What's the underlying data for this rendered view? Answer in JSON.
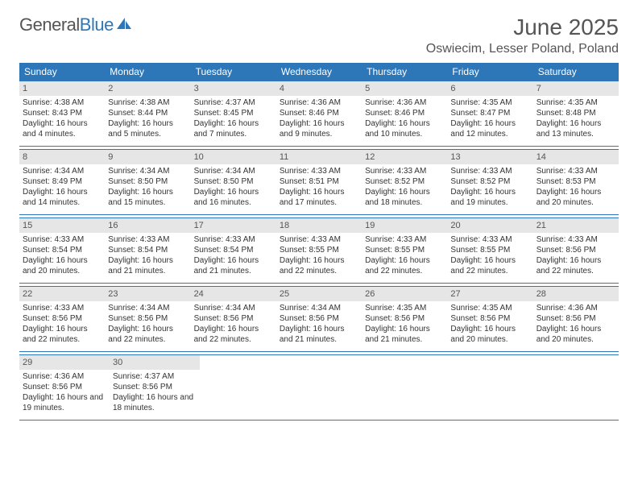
{
  "logo": {
    "text_gray": "General",
    "text_blue": "Blue"
  },
  "header": {
    "month_title": "June 2025",
    "location": "Oswiecim, Lesser Poland, Poland"
  },
  "colors": {
    "brand_blue": "#2d76b8",
    "gray_text": "#555555",
    "daynum_bg": "#e6e6e6"
  },
  "day_names": [
    "Sunday",
    "Monday",
    "Tuesday",
    "Wednesday",
    "Thursday",
    "Friday",
    "Saturday"
  ],
  "layout": {
    "first_day_offset": 0,
    "days_in_month": 30
  },
  "days": [
    {
      "n": 1,
      "sunrise": "4:38 AM",
      "sunset": "8:43 PM",
      "daylight": "16 hours and 4 minutes."
    },
    {
      "n": 2,
      "sunrise": "4:38 AM",
      "sunset": "8:44 PM",
      "daylight": "16 hours and 5 minutes."
    },
    {
      "n": 3,
      "sunrise": "4:37 AM",
      "sunset": "8:45 PM",
      "daylight": "16 hours and 7 minutes."
    },
    {
      "n": 4,
      "sunrise": "4:36 AM",
      "sunset": "8:46 PM",
      "daylight": "16 hours and 9 minutes."
    },
    {
      "n": 5,
      "sunrise": "4:36 AM",
      "sunset": "8:46 PM",
      "daylight": "16 hours and 10 minutes."
    },
    {
      "n": 6,
      "sunrise": "4:35 AM",
      "sunset": "8:47 PM",
      "daylight": "16 hours and 12 minutes."
    },
    {
      "n": 7,
      "sunrise": "4:35 AM",
      "sunset": "8:48 PM",
      "daylight": "16 hours and 13 minutes."
    },
    {
      "n": 8,
      "sunrise": "4:34 AM",
      "sunset": "8:49 PM",
      "daylight": "16 hours and 14 minutes."
    },
    {
      "n": 9,
      "sunrise": "4:34 AM",
      "sunset": "8:50 PM",
      "daylight": "16 hours and 15 minutes."
    },
    {
      "n": 10,
      "sunrise": "4:34 AM",
      "sunset": "8:50 PM",
      "daylight": "16 hours and 16 minutes."
    },
    {
      "n": 11,
      "sunrise": "4:33 AM",
      "sunset": "8:51 PM",
      "daylight": "16 hours and 17 minutes."
    },
    {
      "n": 12,
      "sunrise": "4:33 AM",
      "sunset": "8:52 PM",
      "daylight": "16 hours and 18 minutes."
    },
    {
      "n": 13,
      "sunrise": "4:33 AM",
      "sunset": "8:52 PM",
      "daylight": "16 hours and 19 minutes."
    },
    {
      "n": 14,
      "sunrise": "4:33 AM",
      "sunset": "8:53 PM",
      "daylight": "16 hours and 20 minutes."
    },
    {
      "n": 15,
      "sunrise": "4:33 AM",
      "sunset": "8:54 PM",
      "daylight": "16 hours and 20 minutes."
    },
    {
      "n": 16,
      "sunrise": "4:33 AM",
      "sunset": "8:54 PM",
      "daylight": "16 hours and 21 minutes."
    },
    {
      "n": 17,
      "sunrise": "4:33 AM",
      "sunset": "8:54 PM",
      "daylight": "16 hours and 21 minutes."
    },
    {
      "n": 18,
      "sunrise": "4:33 AM",
      "sunset": "8:55 PM",
      "daylight": "16 hours and 22 minutes."
    },
    {
      "n": 19,
      "sunrise": "4:33 AM",
      "sunset": "8:55 PM",
      "daylight": "16 hours and 22 minutes."
    },
    {
      "n": 20,
      "sunrise": "4:33 AM",
      "sunset": "8:55 PM",
      "daylight": "16 hours and 22 minutes."
    },
    {
      "n": 21,
      "sunrise": "4:33 AM",
      "sunset": "8:56 PM",
      "daylight": "16 hours and 22 minutes."
    },
    {
      "n": 22,
      "sunrise": "4:33 AM",
      "sunset": "8:56 PM",
      "daylight": "16 hours and 22 minutes."
    },
    {
      "n": 23,
      "sunrise": "4:34 AM",
      "sunset": "8:56 PM",
      "daylight": "16 hours and 22 minutes."
    },
    {
      "n": 24,
      "sunrise": "4:34 AM",
      "sunset": "8:56 PM",
      "daylight": "16 hours and 22 minutes."
    },
    {
      "n": 25,
      "sunrise": "4:34 AM",
      "sunset": "8:56 PM",
      "daylight": "16 hours and 21 minutes."
    },
    {
      "n": 26,
      "sunrise": "4:35 AM",
      "sunset": "8:56 PM",
      "daylight": "16 hours and 21 minutes."
    },
    {
      "n": 27,
      "sunrise": "4:35 AM",
      "sunset": "8:56 PM",
      "daylight": "16 hours and 20 minutes."
    },
    {
      "n": 28,
      "sunrise": "4:36 AM",
      "sunset": "8:56 PM",
      "daylight": "16 hours and 20 minutes."
    },
    {
      "n": 29,
      "sunrise": "4:36 AM",
      "sunset": "8:56 PM",
      "daylight": "16 hours and 19 minutes."
    },
    {
      "n": 30,
      "sunrise": "4:37 AM",
      "sunset": "8:56 PM",
      "daylight": "16 hours and 18 minutes."
    }
  ],
  "labels": {
    "sunrise": "Sunrise: ",
    "sunset": "Sunset: ",
    "daylight": "Daylight: "
  }
}
